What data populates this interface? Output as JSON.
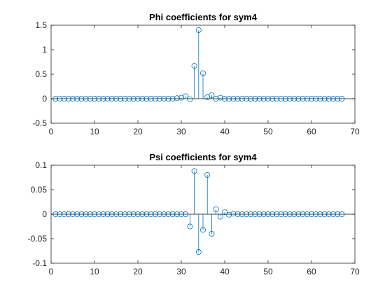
{
  "chart_data": [
    {
      "type": "stem",
      "title": "Phi coefficients for sym4",
      "xlabel": "",
      "ylabel": "",
      "xlim": [
        0,
        70
      ],
      "ylim": [
        -0.5,
        1.5
      ],
      "xticks": [
        0,
        10,
        20,
        30,
        40,
        50,
        60,
        70
      ],
      "yticks": [
        -0.5,
        0,
        0.5,
        1,
        1.5
      ],
      "xtick_labels": [
        "0",
        "10",
        "20",
        "30",
        "40",
        "50",
        "60",
        "70"
      ],
      "ytick_labels": [
        "-0.5",
        "0",
        "0.5",
        "1",
        "1.5"
      ],
      "color": "#0072bd",
      "x": [
        1,
        2,
        3,
        4,
        5,
        6,
        7,
        8,
        9,
        10,
        11,
        12,
        13,
        14,
        15,
        16,
        17,
        18,
        19,
        20,
        21,
        22,
        23,
        24,
        25,
        26,
        27,
        28,
        29,
        30,
        31,
        32,
        33,
        34,
        35,
        36,
        37,
        38,
        39,
        40,
        41,
        42,
        43,
        44,
        45,
        46,
        47,
        48,
        49,
        50,
        51,
        52,
        53,
        54,
        55,
        56,
        57,
        58,
        59,
        60,
        61,
        62,
        63,
        64,
        65,
        66,
        67
      ],
      "y": [
        0,
        0,
        0,
        0,
        0,
        0,
        0,
        0,
        0,
        0,
        0,
        0,
        0,
        0,
        0,
        0,
        0,
        0,
        0,
        0,
        0,
        0,
        0,
        0,
        0,
        0,
        0,
        0,
        0.01,
        0.02,
        0.05,
        -0.01,
        0.67,
        1.4,
        0.52,
        0.03,
        0.07,
        0,
        0.02,
        0,
        0,
        0,
        0,
        0,
        0,
        0,
        0,
        0,
        0,
        0,
        0,
        0,
        0,
        0,
        0,
        0,
        0,
        0,
        0,
        0,
        0,
        0,
        0,
        0,
        0,
        0,
        0
      ]
    },
    {
      "type": "stem",
      "title": "Psi coefficients for sym4",
      "xlabel": "",
      "ylabel": "",
      "xlim": [
        0,
        70
      ],
      "ylim": [
        -0.1,
        0.1
      ],
      "xticks": [
        0,
        10,
        20,
        30,
        40,
        50,
        60,
        70
      ],
      "yticks": [
        -0.1,
        -0.05,
        0,
        0.05,
        0.1
      ],
      "xtick_labels": [
        "0",
        "10",
        "20",
        "30",
        "40",
        "50",
        "60",
        "70"
      ],
      "ytick_labels": [
        "-0.1",
        "-0.05",
        "0",
        "0.05",
        "0.1"
      ],
      "color": "#0072bd",
      "x": [
        1,
        2,
        3,
        4,
        5,
        6,
        7,
        8,
        9,
        10,
        11,
        12,
        13,
        14,
        15,
        16,
        17,
        18,
        19,
        20,
        21,
        22,
        23,
        24,
        25,
        26,
        27,
        28,
        29,
        30,
        31,
        32,
        33,
        34,
        35,
        36,
        37,
        38,
        39,
        40,
        41,
        42,
        43,
        44,
        45,
        46,
        47,
        48,
        49,
        50,
        51,
        52,
        53,
        54,
        55,
        56,
        57,
        58,
        59,
        60,
        61,
        62,
        63,
        64,
        65,
        66,
        67
      ],
      "y": [
        0,
        0,
        0,
        0,
        0,
        0,
        0,
        0,
        0,
        0,
        0,
        0,
        0,
        0,
        0,
        0,
        0,
        0,
        0,
        0,
        0,
        0,
        0,
        0,
        0,
        0,
        0,
        0,
        0,
        0,
        0,
        -0.025,
        0.088,
        -0.077,
        -0.032,
        0.08,
        -0.04,
        0.01,
        -0.005,
        0.004,
        -0.001,
        0.001,
        0,
        0,
        0,
        0,
        0,
        0,
        0,
        0,
        0,
        0,
        0,
        0,
        0,
        0,
        0,
        0,
        0,
        0,
        0,
        0,
        0,
        0,
        0,
        0,
        0
      ]
    }
  ]
}
